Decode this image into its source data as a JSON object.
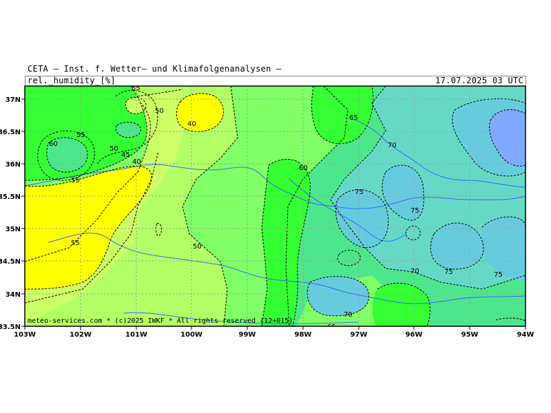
{
  "header": {
    "title": "CETA — Inst. f. Wetter— und Klimafolgenanalysen —",
    "variable": "rel._humidity_[%]",
    "datetime": "17.07.2025 03 UTC"
  },
  "axes": {
    "x_ticks": [
      "103W",
      "102W",
      "101W",
      "100W",
      "99W",
      "98W",
      "97W",
      "96W",
      "95W",
      "94W"
    ],
    "y_ticks": [
      "37N",
      "36.5N",
      "36N",
      "35.5N",
      "35N",
      "34.5N",
      "34N",
      "33.5N"
    ]
  },
  "contour_labels": [
    "55",
    "50",
    "60",
    "55",
    "50",
    "45",
    "40",
    "55",
    "40",
    "55",
    "50",
    "60",
    "65",
    "70",
    "75",
    "75",
    "70",
    "75",
    "75",
    "70",
    "65"
  ],
  "footer": {
    "copyright": "meteo-services.com * (c)2025 IWKF * All rights reserved (12+015)"
  },
  "colors": {
    "humidity_40": "#ffff00",
    "humidity_45": "#ccff66",
    "humidity_50": "#b3ff66",
    "humidity_55": "#80ff66",
    "humidity_60": "#33ff33",
    "humidity_65": "#4de68c",
    "humidity_70": "#66d9c6",
    "humidity_75": "#66ccdd",
    "humidity_80": "#80aaff",
    "river": "#3366ff",
    "grid": "#9a9a9a",
    "contour": "#000000"
  }
}
